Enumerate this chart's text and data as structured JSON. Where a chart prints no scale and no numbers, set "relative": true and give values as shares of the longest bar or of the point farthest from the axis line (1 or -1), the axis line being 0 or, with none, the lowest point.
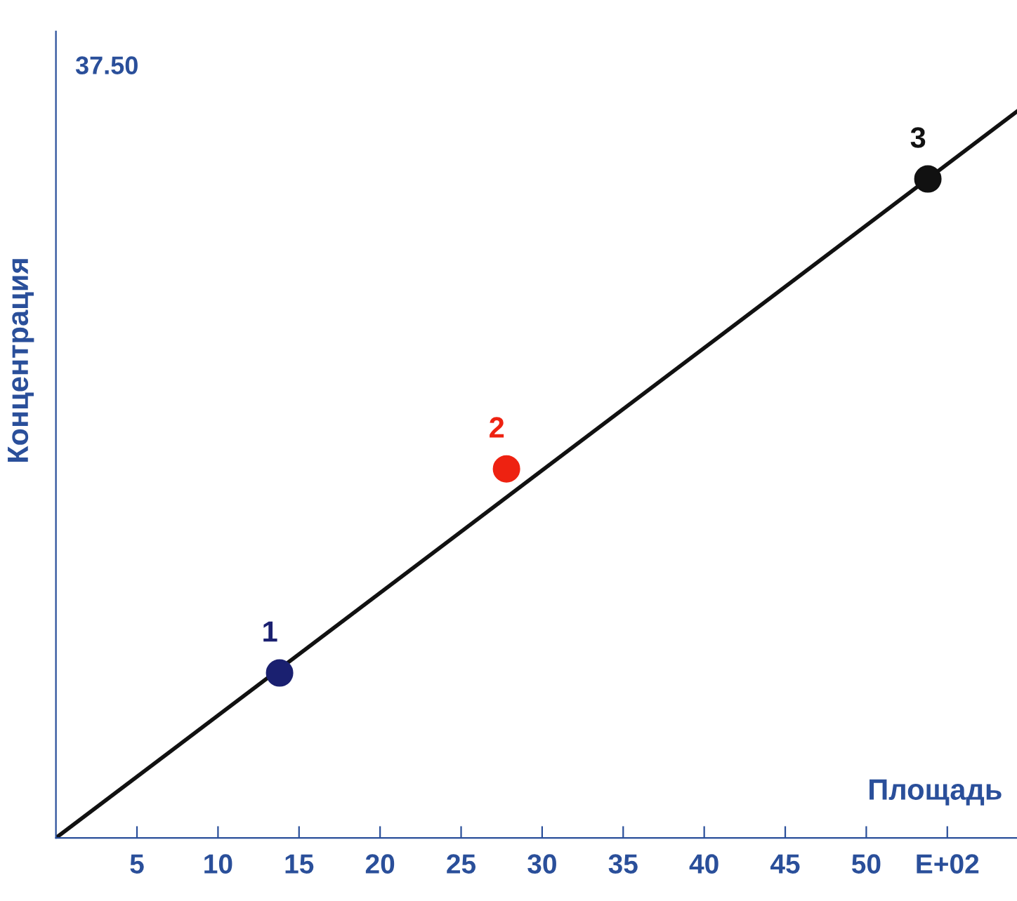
{
  "chart_data": {
    "type": "scatter",
    "relative": true,
    "xlabel": "Площадь",
    "ylabel": "Концентрация",
    "annotations": [
      "37.50"
    ],
    "xlim": [
      0,
      59.3
    ],
    "xticks": [
      5,
      10,
      15,
      20,
      25,
      30,
      35,
      40,
      45,
      50,
      {
        "value": 55,
        "label": "E+02"
      }
    ],
    "grid": false,
    "legend": false,
    "marker": "circle",
    "series": [
      {
        "type": "line",
        "color": "#111111",
        "x": [
          0,
          59.3
        ],
        "values": [
          0,
          1
        ],
        "marker": "none",
        "line_style": "solid"
      },
      {
        "name": "1",
        "color": "#1a2070",
        "x": [
          13.8
        ],
        "values": [
          0.227
        ]
      },
      {
        "name": "2",
        "color": "#ee2211",
        "x": [
          27.8
        ],
        "values": [
          0.508
        ]
      },
      {
        "name": "3",
        "color": "#111111",
        "x": [
          53.8
        ],
        "values": [
          0.907
        ]
      }
    ]
  }
}
